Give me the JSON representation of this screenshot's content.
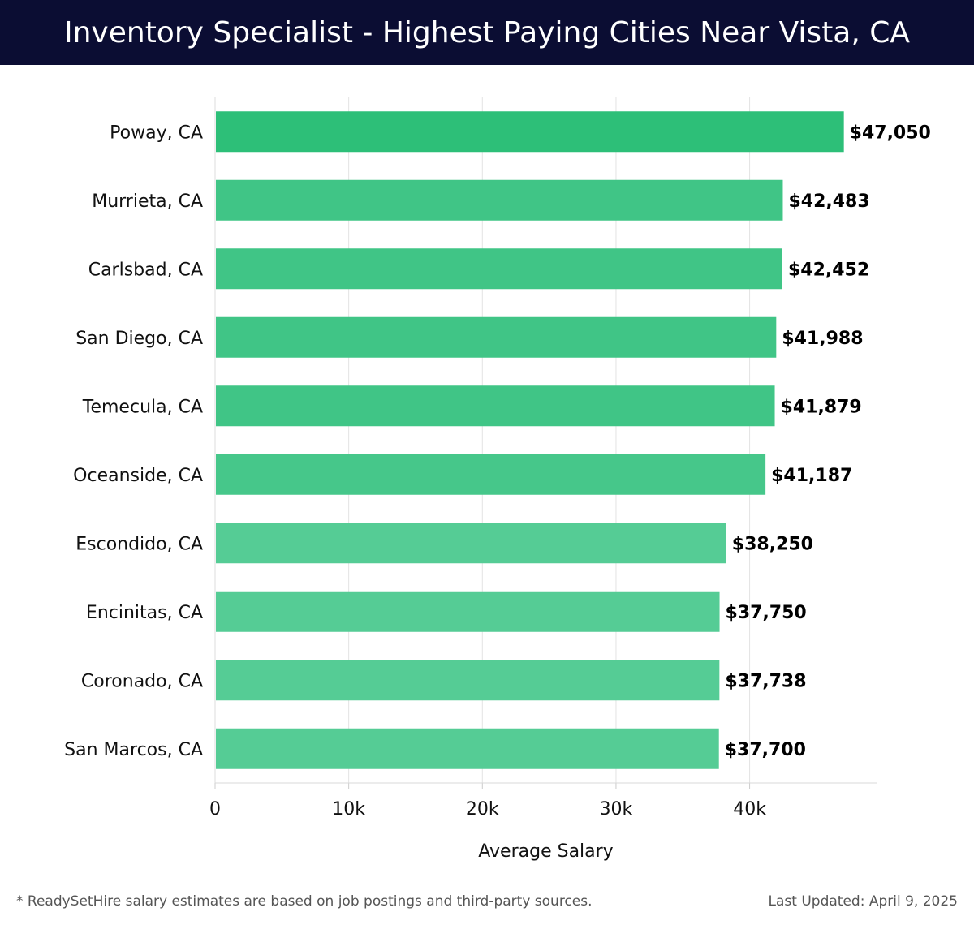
{
  "header": {
    "title": "Inventory Specialist - Highest Paying Cities Near Vista, CA"
  },
  "chart_data": {
    "type": "bar",
    "orientation": "horizontal",
    "title": "Inventory Specialist - Highest Paying Cities Near Vista, CA",
    "categories": [
      "Poway, CA",
      "Murrieta, CA",
      "Carlsbad, CA",
      "San Diego, CA",
      "Temecula, CA",
      "Oceanside, CA",
      "Escondido, CA",
      "Encinitas, CA",
      "Coronado, CA",
      "San Marcos, CA"
    ],
    "values": [
      47050,
      42483,
      42452,
      41988,
      41879,
      41187,
      38250,
      37750,
      37738,
      37700
    ],
    "data_labels": [
      "$47,050",
      "$42,483",
      "$42,452",
      "$41,988",
      "$41,879",
      "$41,187",
      "$38,250",
      "$37,750",
      "$37,738",
      "$37,700"
    ],
    "xlabel": "Average Salary",
    "ylabel": "",
    "xlim": [
      0,
      49500
    ],
    "xticks": [
      0,
      10000,
      20000,
      30000,
      40000
    ],
    "xtick_labels": [
      "0",
      "10k",
      "20k",
      "30k",
      "40k"
    ],
    "grid": true,
    "bar_colors": [
      "#2dbf78",
      "#40c586",
      "#40c586",
      "#40c586",
      "#40c586",
      "#46c78a",
      "#55cc95",
      "#55cc95",
      "#55cc95",
      "#55cc95"
    ]
  },
  "footer": {
    "note": "* ReadySetHire salary estimates are based on job postings and third-party sources.",
    "updated": "Last Updated: April 9, 2025"
  }
}
